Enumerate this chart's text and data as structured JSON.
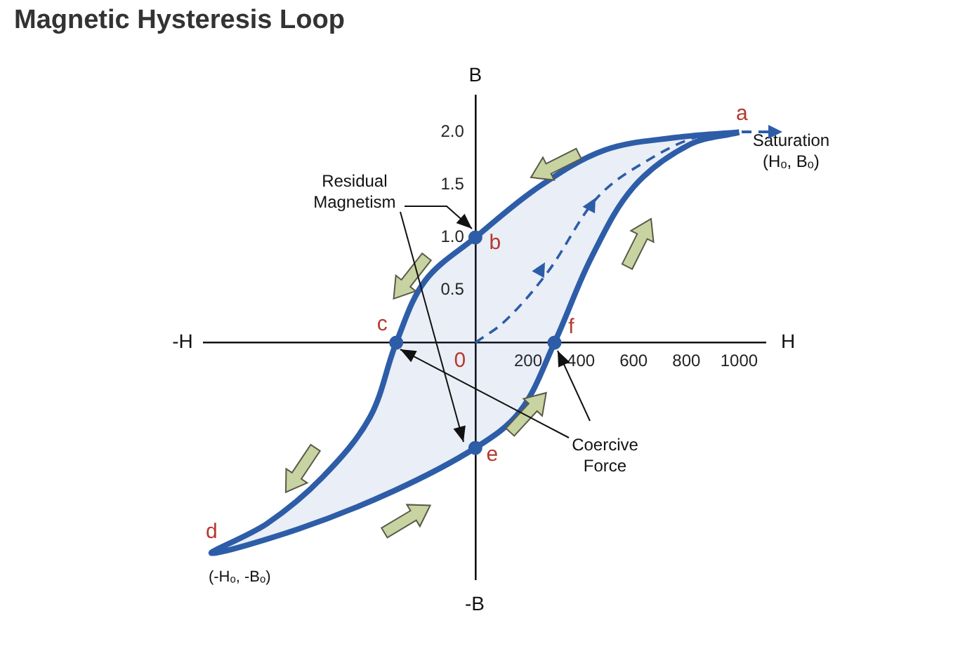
{
  "chart_data": {
    "type": "line",
    "title": "Magnetic Hysteresis Loop",
    "xlabel": "H",
    "ylabel": "B",
    "xlim": [
      -1030,
      1100
    ],
    "ylim": [
      -2.25,
      2.35
    ],
    "xticks": [
      200,
      400,
      600,
      800,
      1000
    ],
    "yticks": [
      0.5,
      {
        "value": 1,
        "label": "1.0"
      },
      1.5,
      {
        "value": 2,
        "label": "2.0"
      }
    ],
    "grid": false,
    "legend": false,
    "marker": "none",
    "series": [
      {
        "type": "area",
        "color": "#2e5da8",
        "x": [
          1000,
          760,
          490,
          240,
          0,
          -190,
          -300,
          -400,
          -580,
          -790,
          -1000,
          -670,
          -310,
          0,
          170,
          300,
          440,
          600,
          810,
          1000
        ],
        "values": [
          2.0,
          1.95,
          1.83,
          1.48,
          1.0,
          0.59,
          0,
          -0.71,
          -1.28,
          -1.72,
          -2.0,
          -1.77,
          -1.41,
          -1.0,
          -0.65,
          0,
          0.81,
          1.48,
          1.88,
          2.0
        ]
      },
      {
        "color": "#2e5da8",
        "line_style": "dashed",
        "x": [
          0,
          110,
          277,
          452,
          665,
          846,
          1000
        ],
        "values": [
          0,
          0.2,
          0.68,
          1.35,
          1.75,
          1.96,
          2.0
        ]
      },
      {
        "type": "scatter",
        "marker": "circle",
        "color": "#2e5da8",
        "x": [
          0,
          -300,
          0,
          300
        ],
        "values": [
          1.0,
          0,
          -1.0,
          0
        ]
      }
    ],
    "annotations": [
      {
        "text": "a",
        "x": 1000,
        "y": 2.0
      },
      {
        "text": "b",
        "x": 0,
        "y": 1.0
      },
      {
        "text": "c",
        "x": -300,
        "y": 0
      },
      {
        "text": "d",
        "x": -1000,
        "y": -2.0
      },
      {
        "text": "e",
        "x": 0,
        "y": -1.0
      },
      {
        "text": "f",
        "x": 300,
        "y": 0
      },
      {
        "text": "0",
        "x": 0,
        "y": 0
      },
      {
        "text": "Saturation\n(Hₒ, Bₒ)",
        "x": 1000,
        "y": 2.0
      },
      {
        "text": "(-Hₒ, -Bₒ)",
        "x": -1000,
        "y": -2.0
      },
      "-H",
      "-B",
      {
        "text": "Residual\nMagnetism",
        "x": 0,
        "y": 1.0
      },
      {
        "text": "Coercive\nForce",
        "x": 300,
        "y": 0
      }
    ]
  }
}
